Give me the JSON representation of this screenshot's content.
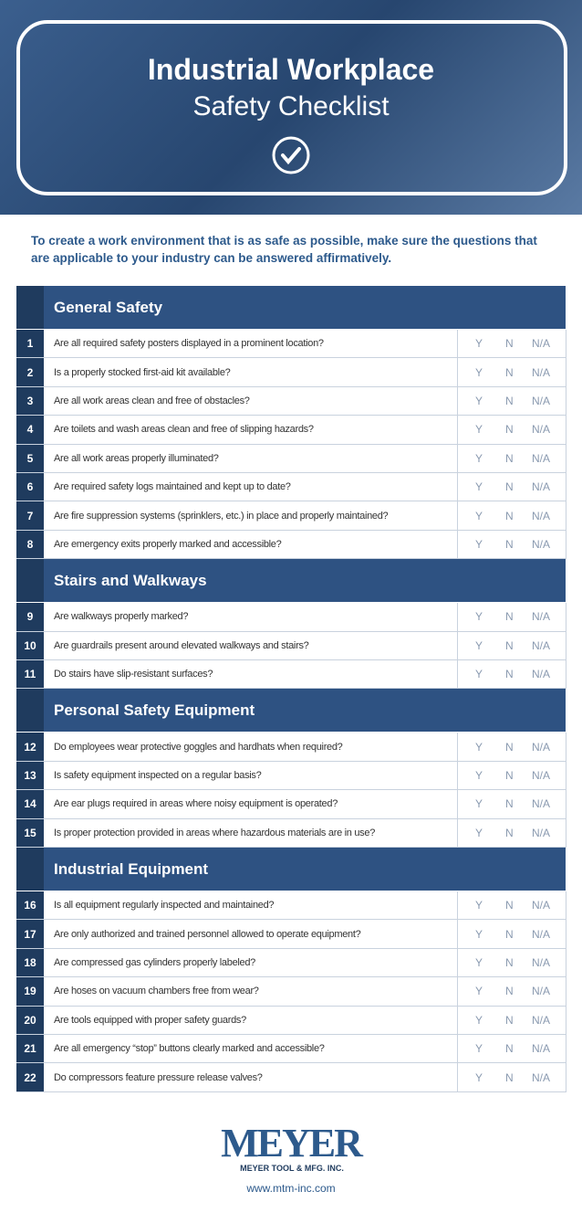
{
  "header": {
    "title": "Industrial Workplace",
    "subtitle": "Safety Checklist"
  },
  "intro": "To create a work environment that is as safe as possible, make sure the questions that are applicable to your industry can be answered affirmatively.",
  "answer_options": [
    "Y",
    "N",
    "N/A"
  ],
  "sections": [
    {
      "title": "General Safety",
      "items": [
        {
          "number": "1",
          "question": "Are all required safety posters displayed in a prominent location?"
        },
        {
          "number": "2",
          "question": "Is a properly stocked first-aid kit available?"
        },
        {
          "number": "3",
          "question": "Are all work areas clean and free of obstacles?"
        },
        {
          "number": "4",
          "question": "Are toilets and wash areas clean and free of slipping hazards?"
        },
        {
          "number": "5",
          "question": "Are all work areas properly illuminated?"
        },
        {
          "number": "6",
          "question": "Are required safety logs maintained and kept up to date?"
        },
        {
          "number": "7",
          "question": "Are fire suppression systems (sprinklers, etc.) in place and properly maintained?"
        },
        {
          "number": "8",
          "question": "Are emergency exits properly marked and accessible?"
        }
      ]
    },
    {
      "title": "Stairs and Walkways",
      "items": [
        {
          "number": "9",
          "question": "Are walkways properly marked?"
        },
        {
          "number": "10",
          "question": "Are guardrails present around elevated walkways and stairs?"
        },
        {
          "number": "11",
          "question": "Do stairs have slip-resistant surfaces?"
        }
      ]
    },
    {
      "title": "Personal Safety Equipment",
      "items": [
        {
          "number": "12",
          "question": "Do employees wear protective goggles and hardhats when required?"
        },
        {
          "number": "13",
          "question": "Is safety equipment inspected on a regular basis?"
        },
        {
          "number": "14",
          "question": "Are ear plugs required in areas where noisy equipment is operated?"
        },
        {
          "number": "15",
          "question": "Is proper protection provided in areas where hazardous materials are in use?"
        }
      ]
    },
    {
      "title": "Industrial Equipment",
      "items": [
        {
          "number": "16",
          "question": "Is all equipment regularly inspected and maintained?"
        },
        {
          "number": "17",
          "question": "Are only authorized and trained personnel allowed to operate equipment?"
        },
        {
          "number": "18",
          "question": "Are compressed gas cylinders properly labeled?"
        },
        {
          "number": "19",
          "question": "Are hoses on vacuum chambers free from wear?"
        },
        {
          "number": "20",
          "question": "Are tools equipped with proper safety guards?"
        },
        {
          "number": "21",
          "question": "Are all emergency “stop” buttons clearly marked and accessible?"
        },
        {
          "number": "22",
          "question": "Do compressors feature pressure release valves?"
        }
      ]
    }
  ],
  "footer": {
    "logo": "MEYER",
    "company": "MEYER TOOL & MFG. INC.",
    "url": "www.mtm-inc.com"
  }
}
